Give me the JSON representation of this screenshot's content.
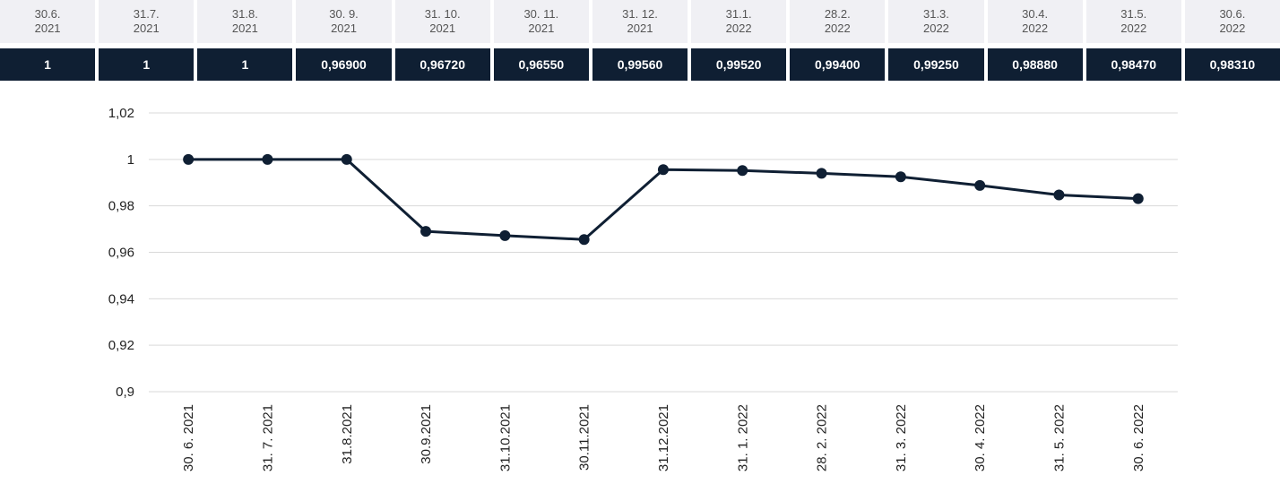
{
  "table": {
    "header": [
      "30.6.\n2021",
      "31.7.\n2021",
      "31.8.\n2021",
      "30. 9.\n2021",
      "31. 10.\n2021",
      "30. 11.\n2021",
      "31. 12.\n2021",
      "31.1.\n2022",
      "28.2.\n2022",
      "31.3.\n2022",
      "30.4.\n2022",
      "31.5.\n2022",
      "30.6.\n2022"
    ],
    "values": [
      "1",
      "1",
      "1",
      "0,96900",
      "0,96720",
      "0,96550",
      "0,99560",
      "0,99520",
      "0,99400",
      "0,99250",
      "0,98880",
      "0,98470",
      "0,98310"
    ]
  },
  "chart_data": {
    "type": "line",
    "categories": [
      "30. 6. 2021",
      "31. 7. 2021",
      "31.8.2021",
      "30.9.2021",
      "31.10.2021",
      "30.11.2021",
      "31.12.2021",
      "31. 1. 2022",
      "28. 2. 2022",
      "31. 3. 2022",
      "30. 4. 2022",
      "31. 5. 2022",
      "30. 6. 2022"
    ],
    "values": [
      1,
      1,
      1,
      0.969,
      0.9672,
      0.9655,
      0.9956,
      0.9952,
      0.994,
      0.9925,
      0.9888,
      0.9847,
      0.9831
    ],
    "color": "#0f1f33",
    "ylim": [
      0.9,
      1.02
    ],
    "yticks": [
      {
        "value": 0.9,
        "label": "0,9"
      },
      {
        "value": 0.92,
        "label": "0,92"
      },
      {
        "value": 0.94,
        "label": "0,94"
      },
      {
        "value": 0.96,
        "label": "0,96"
      },
      {
        "value": 0.98,
        "label": "0,98"
      },
      1,
      {
        "value": 1.02,
        "label": "1,02"
      }
    ],
    "grid": true
  }
}
